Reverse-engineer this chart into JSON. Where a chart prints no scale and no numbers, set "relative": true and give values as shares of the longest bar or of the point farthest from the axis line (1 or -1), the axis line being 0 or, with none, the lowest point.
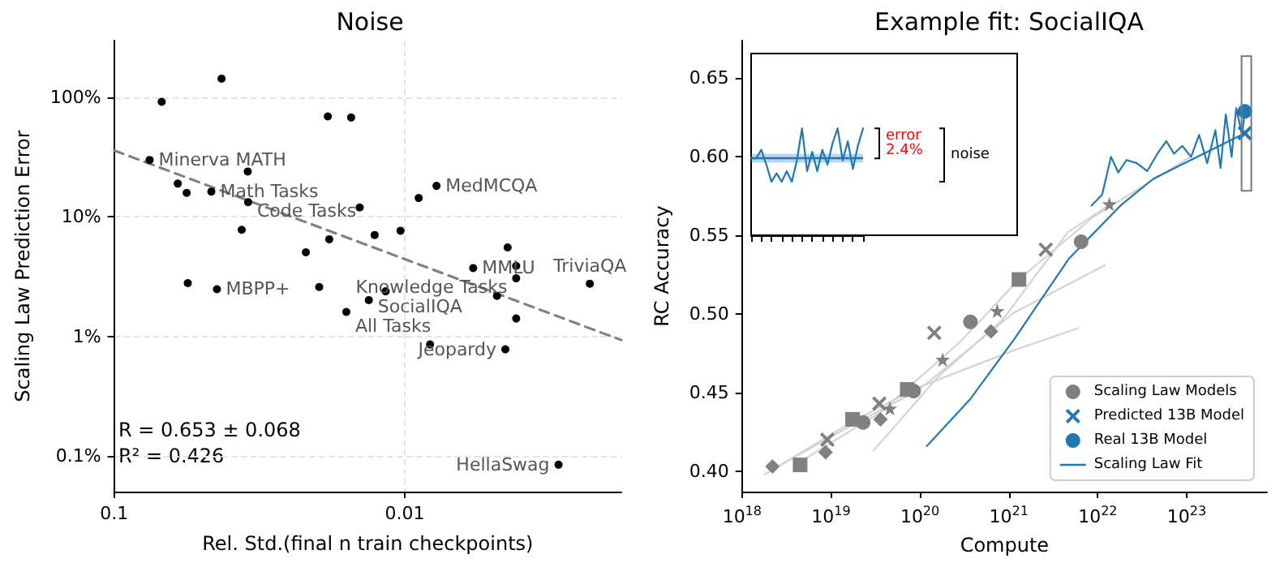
{
  "chart_data": [
    {
      "type": "scatter",
      "title": "Noise",
      "xlabel": "Rel. Std.(final n train checkpoints)",
      "ylabel": "Scaling Law Prediction Error",
      "log": "xy",
      "xlim": [
        0.1,
        0.0018
      ],
      "xticks": [
        0.1,
        0.01
      ],
      "ylim": [
        0.05,
        300
      ],
      "yticks": [
        {
          "value": 0.1,
          "label": "0.1%"
        },
        {
          "value": 1,
          "label": "1%"
        },
        {
          "value": 10,
          "label": "10%"
        },
        {
          "value": 100,
          "label": "100%"
        }
      ],
      "grid": true,
      "marker": "circle",
      "series": [
        {
          "color": "#000000",
          "x": [
            0.0686,
            0.0427,
            0.0755,
            0.0604,
            0.0563,
            0.0463,
            0.0347,
            0.0346,
            0.0364,
            0.0184,
            0.0153,
            0.0143,
            0.0182,
            0.0219,
            0.0127,
            0.01035,
            0.00896,
            0.00778,
            0.00582,
            0.00443,
            0.00414,
            0.00414,
            0.00231,
            0.0558,
            0.0443,
            0.0197,
            0.01164,
            0.0133,
            0.0159,
            0.00819,
            0.00482,
            0.00414,
            0.00451,
            0.00296
          ],
          "values": [
            92,
            144,
            30,
            19,
            15.9,
            16.3,
            24,
            13.3,
            7.8,
            69.5,
            68,
            12,
            6.5,
            5.05,
            7.06,
            7.66,
            14.4,
            18.2,
            3.73,
            5.55,
            3.89,
            3.06,
            2.76,
            2.79,
            2.48,
            2.59,
            2.38,
            2.01,
            1.6,
            0.855,
            2.18,
            1.41,
            0.778,
            0.084
          ]
        },
        {
          "type": "line",
          "color": "#808080",
          "line_style": "dashed",
          "marker": "none",
          "x": [
            0.1,
            0.0018
          ],
          "values": [
            36,
            0.93
          ]
        }
      ],
      "annotations": [
        {
          "text": "Minerva MATH",
          "x": 0.0755,
          "y": 30
        },
        {
          "text": "Math Tasks",
          "x": 0.0463,
          "y": 16.3
        },
        {
          "text": "Code Tasks",
          "x": 0.0346,
          "y": 13.3
        },
        {
          "text": "MedMCQA",
          "x": 0.00778,
          "y": 18.2
        },
        {
          "text": "MMLU",
          "x": 0.00582,
          "y": 3.73
        },
        {
          "text": "Knowledge Tasks",
          "x": 0.00414,
          "y": 3.06
        },
        {
          "text": "TriviaQA",
          "x": 0.00231,
          "y": 2.76
        },
        {
          "text": "MBPP+",
          "x": 0.0443,
          "y": 2.48
        },
        {
          "text": "SocialIQA",
          "x": 0.0133,
          "y": 2.01
        },
        {
          "text": "All Tasks",
          "x": 0.0159,
          "y": 1.6
        },
        {
          "text": "Jeopardy",
          "x": 0.00451,
          "y": 0.778
        },
        {
          "text": "HellaSwag",
          "x": 0.00296,
          "y": 0.084
        },
        "R = 0.653 ± 0.068",
        "R² = 0.426"
      ]
    },
    {
      "type": "scatter",
      "title": "Example fit: SocialIQA",
      "xlabel": "Compute",
      "ylabel": "RC Accuracy",
      "log": "x",
      "xlim": [
        1e+18,
        8e+23
      ],
      "xticks": [
        {
          "value": 1e+18,
          "label": "10$^{18}$"
        },
        {
          "value": 1e+19,
          "label": "10$^{19}$"
        },
        {
          "value": 1e+20,
          "label": "10$^{20}$"
        },
        {
          "value": 1e+21,
          "label": "10$^{21}$"
        },
        {
          "value": 1e+22,
          "label": "10$^{22}$"
        },
        {
          "value": 1e+23,
          "label": "10$^{23}$"
        }
      ],
      "ylim": [
        0.387,
        0.674
      ],
      "yticks": [
        {
          "value": 0.4,
          "label": "0.40"
        },
        0.45,
        {
          "value": 0.5,
          "label": "0.50"
        },
        0.55,
        {
          "value": 0.6,
          "label": "0.60"
        },
        0.65
      ],
      "legend": "bottom right",
      "series": [
        {
          "name": "Scaling Law Models",
          "color": "#808080",
          "marker": "circle",
          "x": [
            2.3e+19,
            8.5e+19,
            3.7e+20,
            6.5e+21
          ],
          "values": [
            0.431,
            0.451,
            0.495,
            0.546
          ]
        },
        {
          "color": "#808080",
          "marker": "square",
          "x": [
            4.5e+18,
            1.75e+19,
            7.2e+19,
            1.3e+21
          ],
          "values": [
            0.404,
            0.433,
            0.452,
            0.522
          ]
        },
        {
          "color": "#808080",
          "marker": "diamond",
          "x": [
            2.2e+18,
            8.7e+18,
            3.6e+19,
            6.3e+20
          ],
          "values": [
            0.403,
            0.412,
            0.433,
            0.489
          ]
        },
        {
          "color": "#808080",
          "marker": "cross",
          "x": [
            9.1e+18,
            3.5e+19,
            1.45e+20,
            2.6e+21
          ],
          "values": [
            0.42,
            0.443,
            0.488,
            0.541
          ]
        },
        {
          "color": "#808080",
          "marker": "star",
          "x": [
            4.6e+19,
            1.8e+20,
            7.4e+20,
            1.35e+22
          ],
          "values": [
            0.44,
            0.471,
            0.502,
            0.57
          ]
        },
        {
          "type": "line",
          "color": "#d3d3d3",
          "marker": "none",
          "x": [
            1.8e+18,
            1.8e+19,
            9.3e+19,
            1.15e+21,
            6e+21
          ],
          "values": [
            0.398,
            0.432,
            0.453,
            0.477,
            0.491
          ]
        },
        {
          "type": "line",
          "color": "#d3d3d3",
          "marker": "none",
          "x": [
            2.2e+18,
            1.8e+19,
            9.3e+19,
            1.15e+21,
            1.2e+22
          ],
          "values": [
            0.401,
            0.43,
            0.451,
            0.501,
            0.531
          ]
        },
        {
          "type": "line",
          "color": "#d3d3d3",
          "marker": "none",
          "x": [
            3e+19,
            1.6e+20,
            8.7e+20,
            4.6e+21,
            1.4e+22
          ],
          "values": [
            0.413,
            0.46,
            0.497,
            0.552,
            0.57
          ]
        },
        {
          "type": "line",
          "color": "#d3d3d3",
          "marker": "none",
          "x": [
            4.5e+18,
            3.5e+19,
            2.8e+20,
            1.3e+21,
            9e+21,
            1.1e+23
          ],
          "values": [
            0.406,
            0.437,
            0.482,
            0.522,
            0.562,
            0.6
          ]
        },
        {
          "type": "line",
          "color": "#1f77b4",
          "marker": "none",
          "x": [
            8.5e+21,
            1.12e+22,
            1.41e+22,
            1.7e+22,
            2.1e+22,
            2.75e+22,
            3.6e+22,
            4.8e+22,
            5.9e+22,
            7.2e+22,
            8.9e+22,
            1.12e+23,
            1.38e+23,
            1.7e+23,
            2.1e+23,
            2.4e+23,
            2.75e+23,
            3.2e+23,
            3.6e+23,
            4.2e+23,
            4.5e+23
          ],
          "values": [
            0.569,
            0.576,
            0.6,
            0.59,
            0.598,
            0.596,
            0.591,
            0.603,
            0.61,
            0.602,
            0.607,
            0.6,
            0.614,
            0.596,
            0.617,
            0.593,
            0.627,
            0.6,
            0.631,
            0.614,
            0.629
          ]
        },
        {
          "name": "Predicted 13B Model",
          "color": "#1f77b4",
          "marker": "cross",
          "x": [
            4.5e+23
          ],
          "values": [
            0.615
          ]
        },
        {
          "name": "Real 13B Model",
          "color": "#1f77b4",
          "marker": "circle",
          "x": [
            4.5e+23
          ],
          "values": [
            0.629
          ]
        },
        {
          "name": "Scaling Law Fit",
          "type": "line",
          "color": "#1f77b4",
          "marker": "none",
          "x": [
            1.2e+20,
            3.7e+20,
            1.15e+21,
            4.7e+21,
            1.8e+22,
            4.2e+22,
            9.5e+22,
            4.5e+23
          ],
          "values": [
            0.416,
            0.446,
            0.484,
            0.535,
            0.569,
            0.586,
            0.596,
            0.615
          ]
        }
      ]
    },
    {
      "type": "line",
      "relative": true,
      "marker": "none",
      "ref_lines": [
        {
          "axis": "y",
          "value": 0.72,
          "color": "#1f77b4"
        }
      ],
      "bands": [
        {
          "axis": "y",
          "from": 0.68,
          "to": 0.76,
          "color": "#1f77b4"
        }
      ],
      "categories": [
        null,
        null,
        null,
        null,
        null,
        null,
        null,
        null,
        null,
        null,
        null,
        null,
        null,
        null,
        null,
        null,
        null,
        null,
        null,
        null,
        null,
        null,
        null
      ],
      "series": [
        {
          "color": "#1f77b4",
          "values": [
            0.72,
            0.72,
            0.8,
            0.66,
            0.5,
            0.58,
            0.5,
            0.6,
            0.5,
            0.7,
            1,
            0.6,
            0.78,
            0.6,
            0.8,
            0.66,
            0.86,
            1,
            0.7,
            0.88,
            0.62,
            0.84,
            1
          ]
        }
      ],
      "annotations": [
        "error 2.4%",
        "noise"
      ]
    }
  ]
}
